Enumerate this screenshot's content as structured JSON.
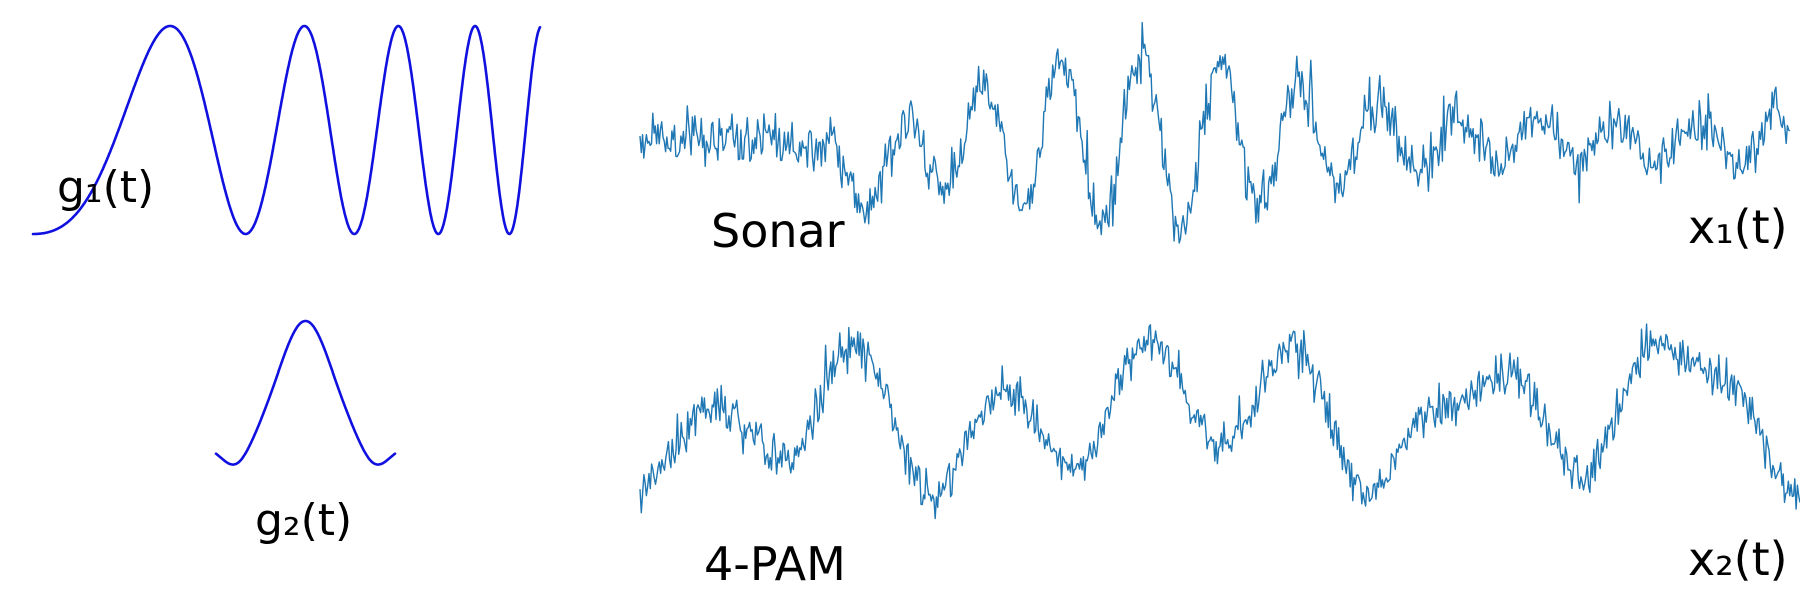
{
  "colors": {
    "pulse": "#1010e0",
    "signal": "#1f77b4",
    "text": "#000000"
  },
  "labels": {
    "g1": "g₁(t)",
    "g2": "g₂(t)",
    "sonar": "Sonar",
    "pam": "4-PAM",
    "x1": "x₁(t)",
    "x2": "x₂(t)"
  },
  "waveforms": {
    "g1": {
      "description_icon": "chirp-pulse-icon"
    },
    "g2": {
      "description_icon": "raised-cosine-pulse-icon"
    },
    "x1": {
      "description_icon": "noisy-sonar-signal-icon"
    },
    "x2": {
      "description_icon": "noisy-pam-signal-icon"
    }
  }
}
